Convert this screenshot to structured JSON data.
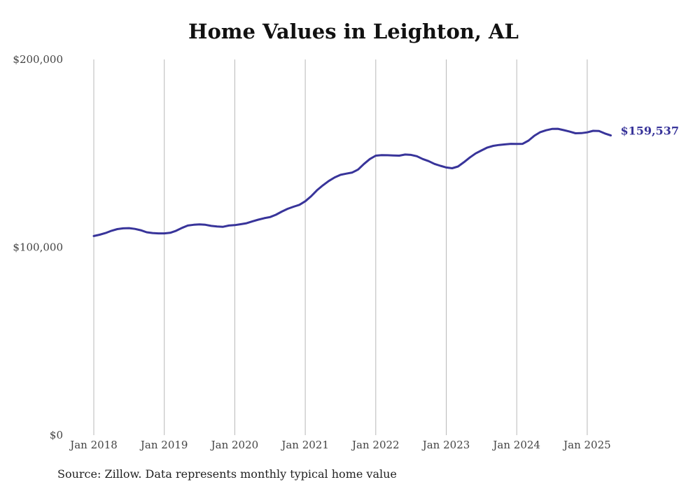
{
  "chart_data": {
    "type": "line",
    "title": "Home Values in Leighton, AL",
    "xlabel": "",
    "ylabel": "",
    "ylim": [
      0,
      200000
    ],
    "y_ticks": [
      {
        "value": 0,
        "label": "$0"
      },
      {
        "value": 100000,
        "label": "$100,000"
      },
      {
        "value": 200000,
        "label": "$200,000"
      }
    ],
    "x_ticks": [
      "Jan 2018",
      "Jan 2019",
      "Jan 2020",
      "Jan 2021",
      "Jan 2022",
      "Jan 2023",
      "Jan 2024",
      "Jan 2025"
    ],
    "grid": {
      "vertical": true,
      "horizontal": false
    },
    "line_color": "#38349a",
    "series": [
      {
        "points": [
          [
            "2018-01",
            106000
          ],
          [
            "2018-02",
            106700
          ],
          [
            "2018-03",
            107600
          ],
          [
            "2018-04",
            108800
          ],
          [
            "2018-05",
            109700
          ],
          [
            "2018-06",
            110100
          ],
          [
            "2018-07",
            110200
          ],
          [
            "2018-08",
            109800
          ],
          [
            "2018-09",
            109100
          ],
          [
            "2018-10",
            108000
          ],
          [
            "2018-11",
            107600
          ],
          [
            "2018-12",
            107400
          ],
          [
            "2019-01",
            107400
          ],
          [
            "2019-02",
            107700
          ],
          [
            "2019-03",
            108800
          ],
          [
            "2019-04",
            110300
          ],
          [
            "2019-05",
            111600
          ],
          [
            "2019-06",
            112000
          ],
          [
            "2019-07",
            112200
          ],
          [
            "2019-08",
            112000
          ],
          [
            "2019-09",
            111400
          ],
          [
            "2019-10",
            111100
          ],
          [
            "2019-11",
            110900
          ],
          [
            "2019-12",
            111600
          ],
          [
            "2020-01",
            111800
          ],
          [
            "2020-02",
            112300
          ],
          [
            "2020-03",
            112800
          ],
          [
            "2020-04",
            113800
          ],
          [
            "2020-05",
            114700
          ],
          [
            "2020-06",
            115500
          ],
          [
            "2020-07",
            116100
          ],
          [
            "2020-08",
            117300
          ],
          [
            "2020-09",
            119000
          ],
          [
            "2020-10",
            120500
          ],
          [
            "2020-11",
            121600
          ],
          [
            "2020-12",
            122600
          ],
          [
            "2021-01",
            124500
          ],
          [
            "2021-02",
            127200
          ],
          [
            "2021-03",
            130400
          ],
          [
            "2021-04",
            133000
          ],
          [
            "2021-05",
            135300
          ],
          [
            "2021-06",
            137200
          ],
          [
            "2021-07",
            138600
          ],
          [
            "2021-08",
            139200
          ],
          [
            "2021-09",
            139800
          ],
          [
            "2021-10",
            141400
          ],
          [
            "2021-11",
            144400
          ],
          [
            "2021-12",
            147000
          ],
          [
            "2022-01",
            148800
          ],
          [
            "2022-02",
            149100
          ],
          [
            "2022-03",
            149000
          ],
          [
            "2022-04",
            148900
          ],
          [
            "2022-05",
            148800
          ],
          [
            "2022-06",
            149400
          ],
          [
            "2022-07",
            149200
          ],
          [
            "2022-08",
            148500
          ],
          [
            "2022-09",
            147000
          ],
          [
            "2022-10",
            145900
          ],
          [
            "2022-11",
            144400
          ],
          [
            "2022-12",
            143400
          ],
          [
            "2023-01",
            142500
          ],
          [
            "2023-02",
            142100
          ],
          [
            "2023-03",
            143000
          ],
          [
            "2023-04",
            145300
          ],
          [
            "2023-05",
            147800
          ],
          [
            "2023-06",
            150000
          ],
          [
            "2023-07",
            151600
          ],
          [
            "2023-08",
            153100
          ],
          [
            "2023-09",
            154000
          ],
          [
            "2023-10",
            154500
          ],
          [
            "2023-11",
            154800
          ],
          [
            "2023-12",
            155100
          ],
          [
            "2024-01",
            155000
          ],
          [
            "2024-02",
            155100
          ],
          [
            "2024-03",
            156800
          ],
          [
            "2024-04",
            159400
          ],
          [
            "2024-05",
            161300
          ],
          [
            "2024-06",
            162300
          ],
          [
            "2024-07",
            163000
          ],
          [
            "2024-08",
            163100
          ],
          [
            "2024-09",
            162400
          ],
          [
            "2024-10",
            161600
          ],
          [
            "2024-11",
            160700
          ],
          [
            "2024-12",
            160800
          ],
          [
            "2025-01",
            161200
          ],
          [
            "2025-02",
            162000
          ],
          [
            "2025-03",
            161900
          ],
          [
            "2025-04",
            160600
          ],
          [
            "2025-05",
            159537
          ]
        ]
      }
    ],
    "end_label": "$159,537"
  },
  "source_text": "Source: Zillow. Data represents monthly typical home value"
}
